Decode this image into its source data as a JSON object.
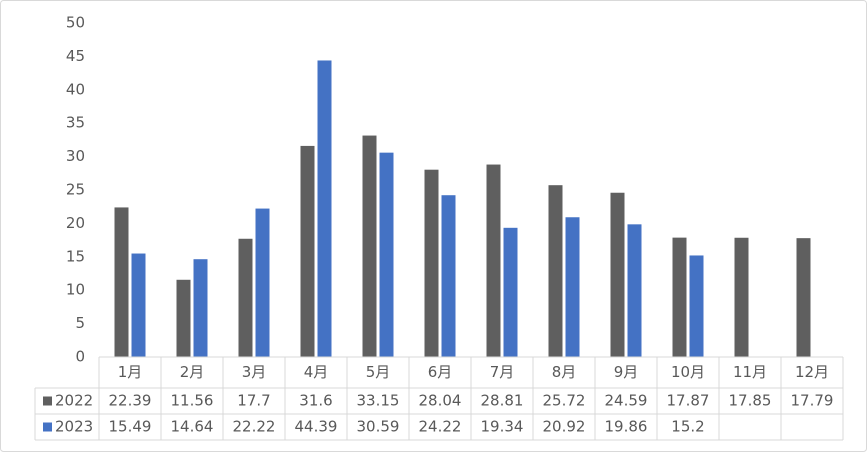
{
  "chart_data": {
    "type": "bar",
    "categories": [
      "1月",
      "2月",
      "3月",
      "4月",
      "5月",
      "6月",
      "7月",
      "8月",
      "9月",
      "10月",
      "11月",
      "12月"
    ],
    "series": [
      {
        "name": "2022",
        "color": "#5f5f5f",
        "values": [
          22.39,
          11.56,
          17.7,
          31.6,
          33.15,
          28.04,
          28.81,
          25.72,
          24.59,
          17.87,
          17.85,
          17.79
        ]
      },
      {
        "name": "2023",
        "color": "#4472c4",
        "values": [
          15.49,
          14.64,
          22.22,
          44.39,
          30.59,
          24.22,
          19.34,
          20.92,
          19.86,
          15.2,
          null,
          null
        ]
      }
    ],
    "ylim": [
      0,
      50
    ],
    "yticks": [
      0,
      5,
      10,
      15,
      20,
      25,
      30,
      35,
      40,
      45,
      50
    ],
    "grid": false,
    "data_table": true
  }
}
